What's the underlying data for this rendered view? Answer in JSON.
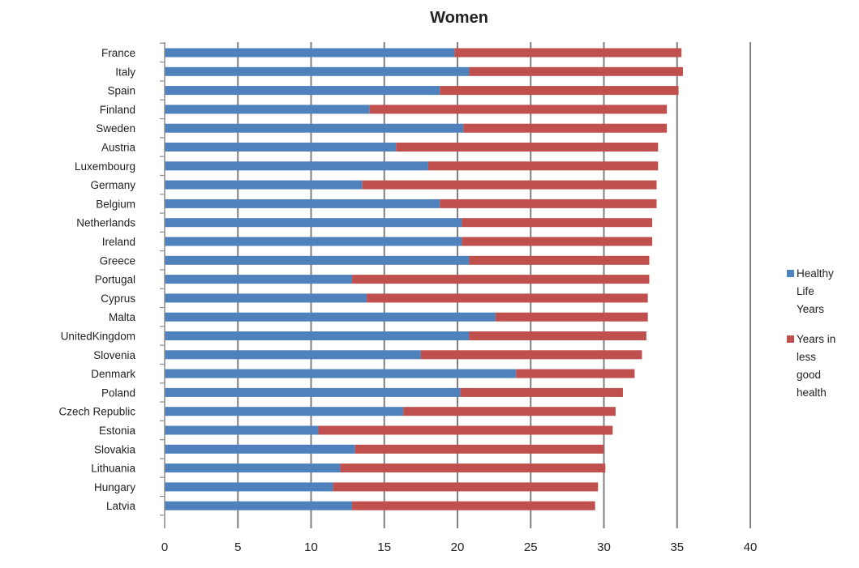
{
  "chart_data": {
    "type": "bar",
    "orientation": "horizontal",
    "stacked": true,
    "title": "Women",
    "xlabel": "",
    "ylabel": "",
    "xlim": [
      0,
      40
    ],
    "x_ticks": [
      "0",
      "5",
      "10",
      "15",
      "20",
      "25",
      "30",
      "35",
      "40"
    ],
    "grid": "vertical",
    "legend_position": "right",
    "categories": [
      "France",
      "Italy",
      "Spain",
      "Finland",
      "Sweden",
      "Austria",
      "Luxembourg",
      "Germany",
      "Belgium",
      "Netherlands",
      "Ireland",
      "Greece",
      "Portugal",
      "Cyprus",
      "Malta",
      "UnitedKingdom",
      "Slovenia",
      "Denmark",
      "Poland",
      "Czech Republic",
      "Estonia",
      "Slovakia",
      "Lithuania",
      "Hungary",
      "Latvia"
    ],
    "series": [
      {
        "name": "Healthy Life Years",
        "legend_lines": [
          "Healthy",
          "Life",
          "Years"
        ],
        "color": "#4f81bd",
        "values": [
          19.8,
          20.8,
          18.8,
          14.0,
          20.4,
          15.8,
          18.0,
          13.5,
          18.8,
          20.3,
          20.3,
          20.8,
          12.8,
          13.8,
          22.6,
          20.8,
          17.5,
          24.0,
          20.2,
          16.3,
          10.5,
          13.0,
          12.0,
          11.5,
          12.8
        ],
        "value_unit": "years"
      },
      {
        "name": "Years in less good health",
        "legend_lines": [
          "Years in",
          "less",
          "good",
          "health"
        ],
        "color": "#c0504d",
        "values": [
          15.5,
          14.6,
          16.3,
          20.3,
          13.9,
          17.9,
          15.7,
          20.1,
          14.8,
          13.0,
          13.0,
          12.3,
          20.3,
          19.2,
          10.4,
          12.1,
          15.1,
          8.1,
          11.1,
          14.5,
          20.1,
          17.0,
          18.1,
          18.1,
          16.6
        ],
        "value_unit": "years"
      }
    ]
  }
}
